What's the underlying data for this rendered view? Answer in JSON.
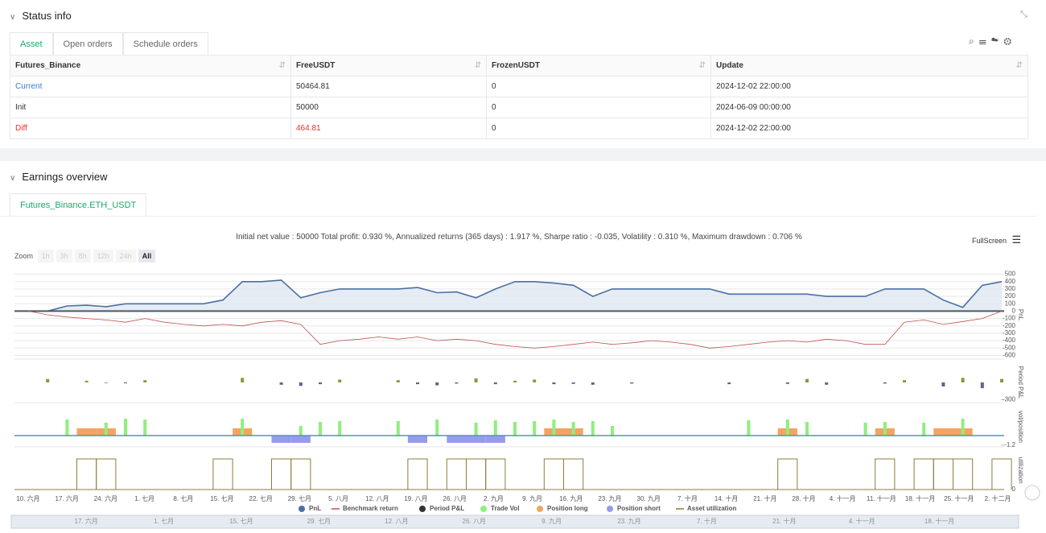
{
  "status": {
    "title": "Status info",
    "tabs": [
      "Asset",
      "Open orders",
      "Schedule orders"
    ],
    "table": {
      "headers": [
        "Futures_Binance",
        "FreeUSDT",
        "FrozenUSDT",
        "Update"
      ],
      "rows": [
        [
          "Current",
          "50464.81",
          "0",
          "2024-12-02 22:00:00"
        ],
        [
          "Init",
          "50000",
          "0",
          "2024-06-09 00:00:00"
        ],
        [
          "Diff",
          "464.81",
          "0",
          "2024-12-02 22:00:00"
        ]
      ]
    }
  },
  "earnings": {
    "title": "Earnings overview",
    "tab": "Futures_Binance.ETH_USDT",
    "summary": "Initial net value : 50000 Total profit: 0.930 %, Annualized returns (365 days) : 1.917 %, Sharpe ratio : -0.035, Volatility : 0.310 %, Maximum drawdown : 0.706 %",
    "fullscreen": "FullScreen",
    "zoom_label": "Zoom",
    "zoom_options": [
      "1h",
      "3h",
      "8h",
      "12h",
      "24h",
      "All"
    ],
    "chart": {
      "x_labels": [
        "10. 六月",
        "17. 六月",
        "24. 六月",
        "1. 七月",
        "8. 七月",
        "15. 七月",
        "22. 七月",
        "29. 七月",
        "5. 八月",
        "12. 八月",
        "19. 八月",
        "26. 八月",
        "2. 九月",
        "9. 九月",
        "16. 九月",
        "23. 九月",
        "30. 九月",
        "7. 十月",
        "14. 十月",
        "21. 十月",
        "28. 十月",
        "4. 十一月",
        "11. 十一月",
        "18. 十一月",
        "25. 十一月",
        "2. 十二月"
      ],
      "pnl_axis": {
        "title": "PnL",
        "ylim": [
          -650,
          550
        ],
        "yticks": [
          500,
          400,
          300,
          200,
          100,
          0,
          -100,
          -200,
          -300,
          -400,
          -500,
          -600
        ]
      },
      "period_axis": {
        "title": "Period P&L",
        "ylim": [
          -350,
          350
        ],
        "yticks": [
          -300
        ]
      },
      "vol_axis": {
        "title": "vol/position",
        "ylim": [
          -1.4,
          3.6
        ],
        "yticks": [
          -1.2
        ]
      },
      "util_axis": {
        "title": "utilization",
        "ylim": [
          0,
          1.2
        ],
        "yticks": [
          0
        ]
      },
      "series": [
        {
          "name": "PnL",
          "color": "#4a6fa5",
          "values": [
            0,
            0,
            70,
            80,
            60,
            100,
            100,
            100,
            100,
            100,
            150,
            400,
            400,
            420,
            180,
            250,
            300,
            300,
            300,
            300,
            320,
            250,
            260,
            180,
            300,
            400,
            400,
            380,
            350,
            200,
            300,
            300,
            300,
            300,
            300,
            300,
            230,
            230,
            230,
            230,
            230,
            200,
            200,
            200,
            300,
            300,
            300,
            150,
            50,
            350,
            400
          ]
        },
        {
          "name": "Benchmark return",
          "color": "#c0504d",
          "values": [
            0,
            -50,
            -80,
            -100,
            -120,
            -150,
            -100,
            -150,
            -180,
            -200,
            -180,
            -200,
            -150,
            -130,
            -180,
            -450,
            -400,
            -380,
            -350,
            -380,
            -350,
            -400,
            -380,
            -400,
            -450,
            -480,
            -500,
            -480,
            -450,
            -420,
            -450,
            -430,
            -400,
            -420,
            -450,
            -500,
            -480,
            -450,
            -420,
            -400,
            -420,
            -380,
            -400,
            -450,
            -450,
            -150,
            -120,
            -180,
            -140,
            -100,
            0
          ]
        },
        {
          "name": "Period P&L",
          "color": "#7e9f3f",
          "values": [
            null,
            60,
            null,
            30,
            -10,
            -15,
            40,
            null,
            null,
            null,
            null,
            80,
            null,
            -40,
            -60,
            -30,
            50,
            null,
            null,
            40,
            -30,
            -50,
            -20,
            70,
            -30,
            30,
            50,
            -30,
            -25,
            -40,
            null,
            -20,
            null,
            null,
            null,
            null,
            -30,
            null,
            null,
            -25,
            60,
            -40,
            null,
            null,
            -20,
            40,
            null,
            -70,
            80,
            -100,
            60
          ]
        },
        {
          "name": "Trade Vol",
          "color": "#90ee7e",
          "values": [
            null,
            null,
            2,
            null,
            1.6,
            2.1,
            2,
            null,
            null,
            null,
            null,
            2.1,
            null,
            null,
            1.2,
            1.7,
            1.8,
            null,
            null,
            1.8,
            null,
            2,
            null,
            1.6,
            1.9,
            1.7,
            1.8,
            2,
            1.7,
            1.8,
            1.2,
            null,
            null,
            null,
            null,
            null,
            null,
            1.9,
            null,
            2,
            1.7,
            null,
            null,
            1.6,
            1.7,
            null,
            1.6,
            null,
            2.1,
            null,
            null
          ]
        },
        {
          "name": "Position long",
          "color": "#f4a460",
          "values": [
            null,
            null,
            null,
            0.9,
            0.9,
            null,
            null,
            null,
            null,
            null,
            null,
            0.9,
            null,
            null,
            null,
            null,
            null,
            null,
            null,
            null,
            null,
            null,
            null,
            null,
            null,
            null,
            null,
            0.9,
            0.9,
            null,
            null,
            null,
            null,
            null,
            null,
            null,
            null,
            null,
            null,
            0.9,
            null,
            null,
            null,
            null,
            0.9,
            null,
            null,
            0.9,
            0.9,
            null,
            null
          ]
        },
        {
          "name": "Position short",
          "color": "#9999ee",
          "values": [
            null,
            null,
            null,
            null,
            null,
            null,
            null,
            null,
            null,
            null,
            null,
            null,
            null,
            -0.9,
            -0.9,
            null,
            null,
            null,
            null,
            null,
            -0.9,
            null,
            -0.9,
            -0.9,
            -0.9,
            null,
            null,
            null,
            null,
            null,
            null,
            null,
            null,
            null,
            null,
            null,
            null,
            null,
            null,
            null,
            null,
            null,
            null,
            null,
            null,
            null,
            null,
            null,
            null,
            null,
            null
          ]
        },
        {
          "name": "Asset utilization",
          "color": "#8b7d3a",
          "values": [
            null,
            null,
            null,
            0.95,
            0.95,
            null,
            null,
            null,
            null,
            null,
            0.95,
            null,
            null,
            0.95,
            0.95,
            null,
            null,
            null,
            null,
            null,
            0.95,
            null,
            0.95,
            0.95,
            0.95,
            null,
            null,
            0.95,
            0.95,
            null,
            null,
            null,
            null,
            null,
            null,
            null,
            null,
            null,
            null,
            0.95,
            null,
            null,
            null,
            null,
            0.95,
            null,
            0.95,
            0.95,
            0.95,
            null,
            0.95
          ]
        }
      ]
    }
  }
}
